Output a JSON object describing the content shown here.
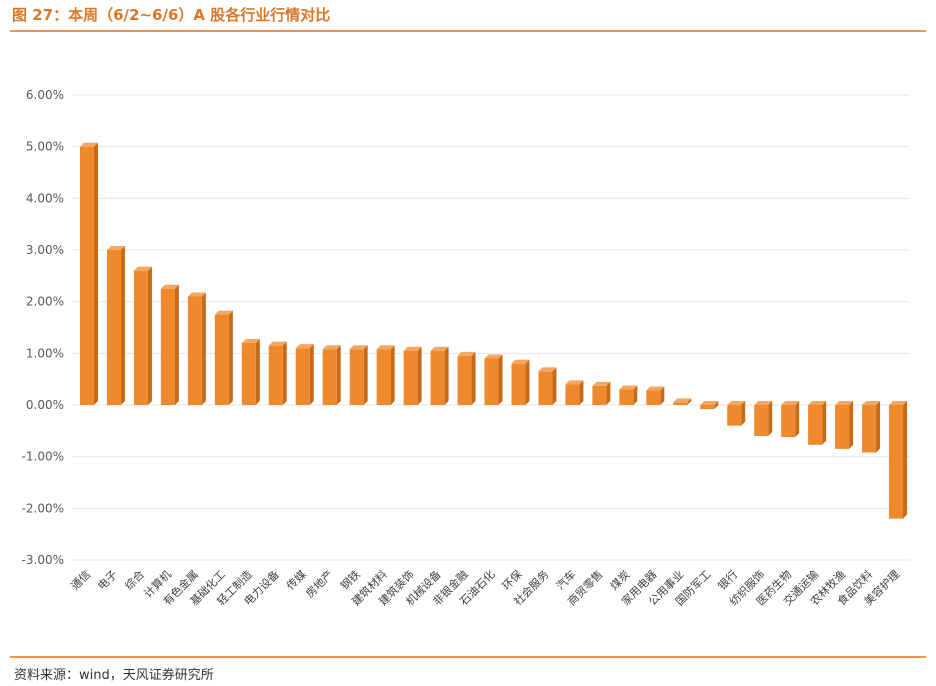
{
  "title": "图 27：本周（6/2~6/6）A 股各行业行情对比",
  "source": "资料来源：wind，天风证券研究所",
  "colors": {
    "accent": "#d9782a",
    "bar_front": "#ee8a2d",
    "bar_top": "#f4a760",
    "bar_side": "#c96a17",
    "grid": "#e6e6e6"
  },
  "chart_data": {
    "type": "bar",
    "categories": [
      "通信",
      "电子",
      "综合",
      "计算机",
      "有色金属",
      "基础化工",
      "轻工制造",
      "电力设备",
      "传媒",
      "房地产",
      "钢铁",
      "建筑材料",
      "建筑装饰",
      "机械设备",
      "非银金融",
      "石油石化",
      "环保",
      "社会服务",
      "汽车",
      "商贸零售",
      "煤炭",
      "家用电器",
      "公用事业",
      "国防军工",
      "银行",
      "纺织服饰",
      "医药生物",
      "交通运输",
      "农林牧渔",
      "食品饮料",
      "美容护理"
    ],
    "values": [
      5.0,
      3.0,
      2.6,
      2.25,
      2.1,
      1.75,
      1.2,
      1.15,
      1.1,
      1.08,
      1.08,
      1.08,
      1.05,
      1.05,
      0.95,
      0.9,
      0.8,
      0.65,
      0.4,
      0.37,
      0.3,
      0.28,
      0.05,
      -0.08,
      -0.4,
      -0.6,
      -0.62,
      -0.77,
      -0.85,
      -0.92,
      -2.2
    ],
    "ylim": [
      -3.0,
      6.0
    ],
    "yticks": [
      "6.00%",
      "5.00%",
      "4.00%",
      "3.00%",
      "2.00%",
      "1.00%",
      "0.00%",
      "-1.00%",
      "-2.00%",
      "-3.00%"
    ],
    "ytick_values": [
      6,
      5,
      4,
      3,
      2,
      1,
      0,
      -1,
      -2,
      -3
    ],
    "grid": true
  }
}
